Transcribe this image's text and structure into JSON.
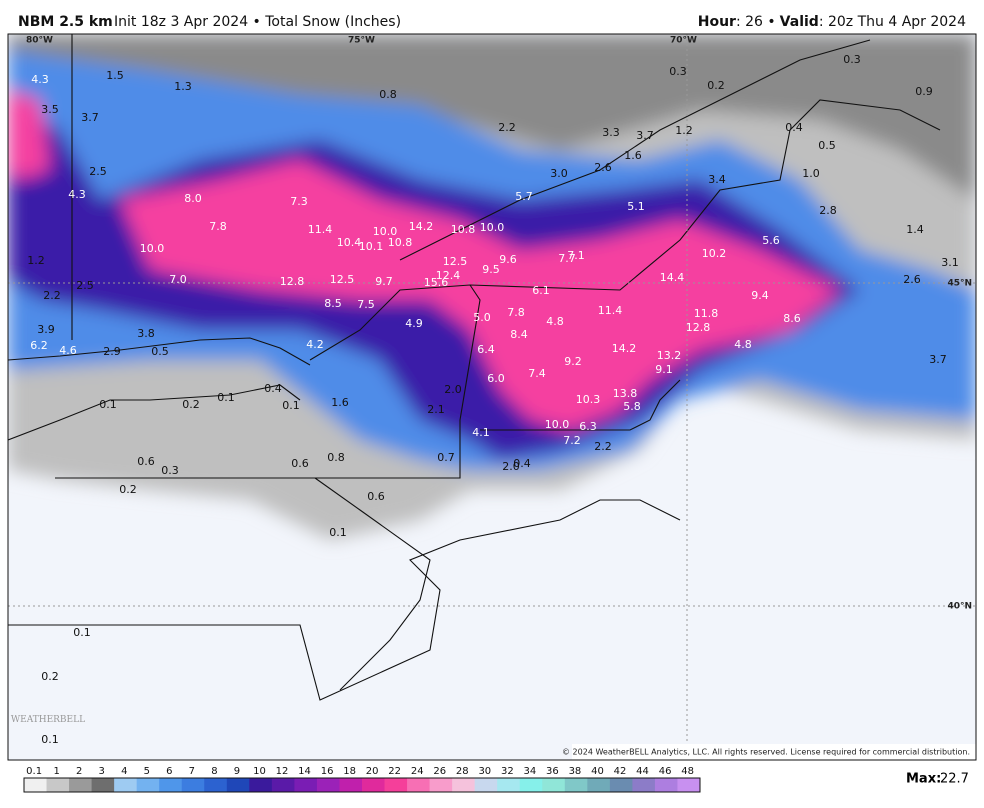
{
  "header": {
    "model": "NBM 2.5 km",
    "run": "Init 18z 3 Apr 2024 • Total Snow (Inches)",
    "hour_label": "Hour",
    "hour_value": ": 26 •",
    "valid_label": "Valid",
    "valid_value": ": 20z Thu 4 Apr 2024"
  },
  "coords": {
    "lon_80": "80°W",
    "lon_75": "75°W",
    "lon_70": "70°W",
    "lat_45": "45°N",
    "lat_40": "40°N"
  },
  "map_labels": [
    "4.3",
    "1.5",
    "1.3",
    "0.8",
    "0.3",
    "0.3",
    "0.2",
    "0.9",
    "3.5",
    "3.7",
    "2.2",
    "3.3",
    "3.7",
    "1.2",
    "0.4",
    "0.5",
    "2.5",
    "1.6",
    "2.6",
    "3.0",
    "1.0",
    "3.4",
    "4.3",
    "8.0",
    "7.3",
    "5.7",
    "5.1",
    "2.8",
    "7.8",
    "11.4",
    "10.0",
    "14.2",
    "10.8",
    "10.0",
    "1.4",
    "5.6",
    "10.0",
    "10.4",
    "10.1",
    "10.8",
    "12.5",
    "9.6",
    "7.7",
    "7.1",
    "10.2",
    "3.1",
    "1.2",
    "7.0",
    "12.8",
    "12.5",
    "9.7",
    "15.6",
    "12.4",
    "9.5",
    "14.4",
    "2.6",
    "2.5",
    "2.2",
    "6.1",
    "9.4",
    "8.5",
    "7.5",
    "11.4",
    "3.9",
    "3.8",
    "5.0",
    "7.8",
    "4.8",
    "11.8",
    "8.6",
    "4.9",
    "8.4",
    "12.8",
    "6.2",
    "4.6",
    "2.9",
    "0.5",
    "4.2",
    "6.4",
    "14.2",
    "4.8",
    "13.2",
    "9.2",
    "9.1",
    "6.0",
    "7.4",
    "3.7",
    "0.4",
    "2.0",
    "13.8",
    "0.1",
    "0.2",
    "0.1",
    "0.1",
    "1.6",
    "2.1",
    "10.3",
    "5.8",
    "10.0",
    "6.3",
    "4.1",
    "7.2",
    "2.2",
    "0.6",
    "0.3",
    "0.6",
    "0.8",
    "0.7",
    "2.0",
    "0.4",
    "0.2",
    "0.6",
    "0.1",
    "0.1",
    "0.2",
    "0.1"
  ],
  "copyright": "© 2024 WeatherBELL Analytics, LLC. All rights reserved. License required for commercial distribution.",
  "watermark": "WEATHERBELL",
  "legend": {
    "labels": [
      "0.1",
      "1",
      "2",
      "3",
      "4",
      "5",
      "6",
      "7",
      "8",
      "9",
      "10",
      "12",
      "14",
      "16",
      "18",
      "20",
      "22",
      "24",
      "26",
      "28",
      "30",
      "32",
      "34",
      "36",
      "38",
      "40",
      "42",
      "44",
      "46",
      "48"
    ]
  },
  "footer": {
    "max_label": "Max:",
    "max_value": "22.7"
  }
}
